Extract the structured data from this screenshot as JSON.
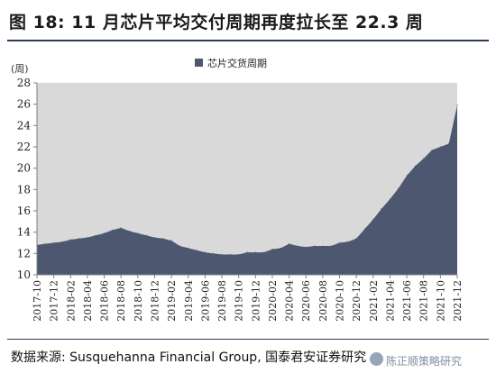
{
  "header": {
    "title": "图 18:  11 月芯片平均交付周期再度拉长至 22.3 周"
  },
  "footer": {
    "source": "数据来源:  Susquehanna Financial Group, 国泰君安证券研究",
    "watermark": "陈正顺策略研究"
  },
  "chart_data": {
    "type": "area",
    "title": "",
    "xlabel": "",
    "ylabel": "(周)",
    "ylim": [
      10,
      28
    ],
    "yticks": [
      10,
      12,
      14,
      16,
      18,
      20,
      22,
      24,
      26,
      28
    ],
    "grid": false,
    "legend_position": "top-center",
    "colors": {
      "fill": "#4d5870",
      "plot_bg": "#d9d9d9",
      "axis": "#7f7f7f"
    },
    "x": [
      "2017-10",
      "2017-11",
      "2017-12",
      "2018-01",
      "2018-02",
      "2018-03",
      "2018-04",
      "2018-05",
      "2018-06",
      "2018-07",
      "2018-08",
      "2018-09",
      "2018-10",
      "2018-11",
      "2018-12",
      "2019-01",
      "2019-02",
      "2019-03",
      "2019-04",
      "2019-05",
      "2019-06",
      "2019-07",
      "2019-08",
      "2019-09",
      "2019-10",
      "2019-11",
      "2019-12",
      "2020-01",
      "2020-02",
      "2020-03",
      "2020-04",
      "2020-05",
      "2020-06",
      "2020-07",
      "2020-08",
      "2020-09",
      "2020-10",
      "2020-11",
      "2020-12",
      "2021-01",
      "2021-02",
      "2021-03",
      "2021-04",
      "2021-05",
      "2021-06",
      "2021-07",
      "2021-08",
      "2021-09",
      "2021-10",
      "2021-11",
      "2021-12"
    ],
    "x_tick_labels": [
      "2017-10",
      "2017-12",
      "2018-02",
      "2018-04",
      "2018-06",
      "2018-08",
      "2018-10",
      "2018-12",
      "2019-02",
      "2019-04",
      "2019-06",
      "2019-08",
      "2019-10",
      "2019-12",
      "2020-02",
      "2020-04",
      "2020-06",
      "2020-08",
      "2020-10",
      "2020-12",
      "2021-02",
      "2021-04",
      "2021-06",
      "2021-08",
      "2021-10",
      "2021-12"
    ],
    "series": [
      {
        "name": "芯片交货周期",
        "values": [
          12.8,
          12.9,
          13.0,
          13.1,
          13.3,
          13.4,
          13.5,
          13.7,
          13.9,
          14.2,
          14.4,
          14.1,
          13.9,
          13.7,
          13.5,
          13.4,
          13.2,
          12.7,
          12.5,
          12.3,
          12.1,
          12.0,
          11.9,
          11.9,
          11.9,
          12.1,
          12.1,
          12.1,
          12.4,
          12.5,
          12.9,
          12.7,
          12.6,
          12.7,
          12.7,
          12.7,
          13.0,
          13.1,
          13.4,
          14.3,
          15.2,
          16.2,
          17.1,
          18.1,
          19.3,
          20.2,
          20.9,
          21.7,
          22.0,
          22.3,
          25.9
        ]
      }
    ]
  }
}
